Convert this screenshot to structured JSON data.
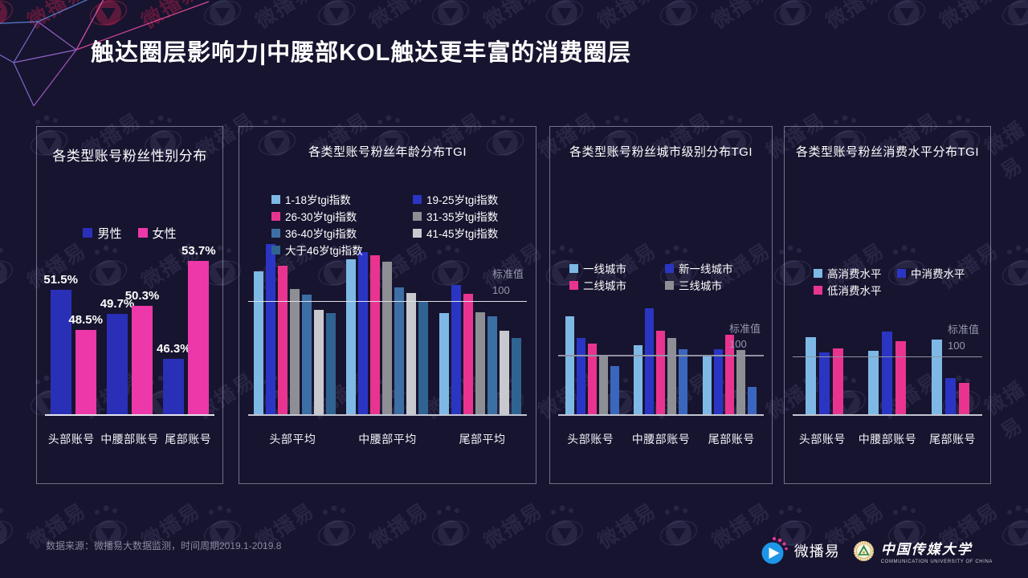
{
  "slide": {
    "title": "触达圈层影响力|中腰部KOL触达更丰富的消费圈层",
    "source": "数据来源：微播易大数据监测，时间周期2019.1-2019.8",
    "watermark_text": "微播易"
  },
  "footer": {
    "weiboyi_name": "微播易",
    "cuc_name": "中国传媒大学",
    "cuc_sub": "COMMUNICATION UNIVERSITY OF CHINA"
  },
  "colors": {
    "background": "#17142F",
    "panel_border": "#B9BCD4",
    "accent_blue": "#2A35C4",
    "accent_pink": "#EC38A8",
    "light_blue": "#7EB9E6",
    "gray": "#8E8F94",
    "light_gray": "#C8C9CE",
    "steel_blue": "#3C6FA3",
    "dark_steel_blue": "#2F6392",
    "medium_blue": "#3B66BD",
    "reference_label": "#9298AC",
    "source_text": "#8B8A9E"
  },
  "chart_data": [
    {
      "type": "bar",
      "title": "各类型账号粉丝性别分布",
      "categories": [
        "头部账号",
        "中腰部账号",
        "尾部账号"
      ],
      "series": [
        {
          "name": "男性",
          "color": "#2A2FB8",
          "values": [
            51.5,
            49.7,
            46.3
          ]
        },
        {
          "name": "女性",
          "color": "#EC38A8",
          "values": [
            48.5,
            50.3,
            53.7
          ]
        }
      ],
      "value_suffix": "%",
      "show_value_labels": true,
      "ylim": [
        42,
        56
      ],
      "legend_position": "top-center",
      "grid": false
    },
    {
      "type": "bar",
      "title": "各类型账号粉丝年龄分布TGI",
      "categories": [
        "头部平均",
        "中腰部平均",
        "尾部平均"
      ],
      "series": [
        {
          "name": "1-18岁tgi指数",
          "color": "#7EB9E6",
          "values": [
            127,
            137,
            90
          ]
        },
        {
          "name": "19-25岁tgi指数",
          "color": "#2A35C4",
          "values": [
            151,
            144,
            115
          ]
        },
        {
          "name": "26-30岁tgi指数",
          "color": "#E9348F",
          "values": [
            132,
            141,
            107
          ]
        },
        {
          "name": "31-35岁tgi指数",
          "color": "#8E8F94",
          "values": [
            111,
            135,
            91
          ]
        },
        {
          "name": "36-40岁tgi指数",
          "color": "#3C6FA3",
          "values": [
            106,
            113,
            87
          ]
        },
        {
          "name": "41-45岁tgi指数",
          "color": "#C8C9CE",
          "values": [
            93,
            108,
            75
          ]
        },
        {
          "name": "大于46岁tgi指数",
          "color": "#2F6392",
          "values": [
            90,
            100,
            68
          ]
        }
      ],
      "reference": {
        "label": "标准值",
        "value": 100
      },
      "ylim": [
        0,
        160
      ],
      "legend_position": "top-left-two-columns",
      "grid": false
    },
    {
      "type": "bar",
      "title": "各类型账号粉丝城市级别分布TGI",
      "categories": [
        "头部账号",
        "中腰部账号",
        "尾部账号"
      ],
      "series": [
        {
          "name": "一线城市",
          "color": "#7EB9E6",
          "values": [
            167,
            118,
            102
          ]
        },
        {
          "name": "新一线城市",
          "color": "#2A35C4",
          "values": [
            131,
            180,
            112
          ]
        },
        {
          "name": "二线城市",
          "color": "#E9348F",
          "values": [
            121,
            143,
            136
          ]
        },
        {
          "name": "三线城市",
          "color": "#8E8F94",
          "values": [
            102,
            130,
            110
          ]
        },
        {
          "name": "",
          "color": "#3B66BD",
          "values": [
            83,
            112,
            49
          ],
          "in_legend": false
        }
      ],
      "reference": {
        "label": "标准值",
        "value": 100
      },
      "ylim": [
        0,
        190
      ],
      "legend_position": "middle-left-two-columns",
      "grid": false
    },
    {
      "type": "bar",
      "title": "各类型账号粉丝消费水平分布TGI",
      "categories": [
        "头部账号",
        "中腰部账号",
        "尾部账号"
      ],
      "series": [
        {
          "name": "高消费水平",
          "color": "#7EB9E6",
          "values": [
            135,
            112,
            131
          ]
        },
        {
          "name": "中消费水平",
          "color": "#2A35C4",
          "values": [
            109,
            145,
            64
          ]
        },
        {
          "name": "低消费水平",
          "color": "#E9348F",
          "values": [
            115,
            128,
            56
          ]
        }
      ],
      "reference": {
        "label": "标准值",
        "value": 100
      },
      "ylim": [
        0,
        160
      ],
      "legend_position": "middle-left-two-columns",
      "grid": false
    }
  ]
}
